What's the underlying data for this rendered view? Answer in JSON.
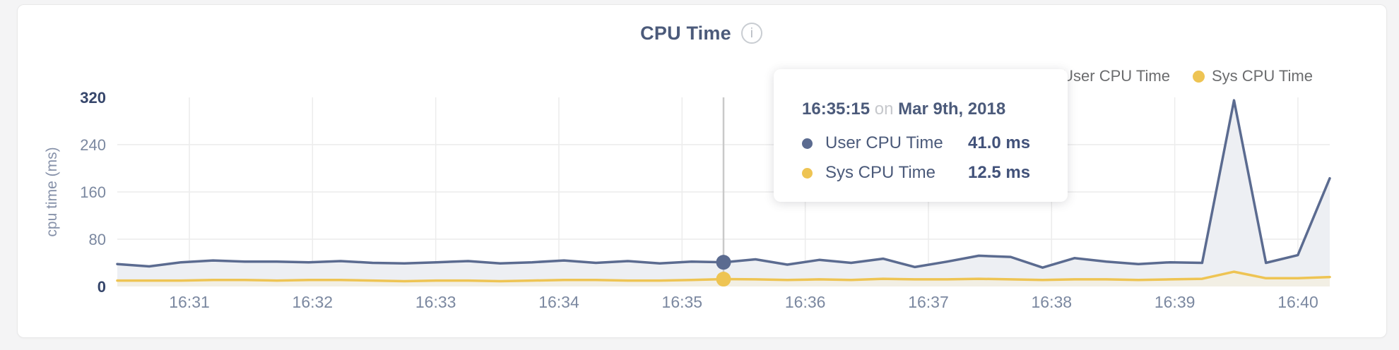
{
  "page": {
    "background": "#f4f4f5"
  },
  "header": {
    "title": "CPU Time",
    "info_icon_glyph": "i"
  },
  "legend": {
    "items": [
      {
        "label": "User CPU Time",
        "color": "#5b6b90"
      },
      {
        "label": "Sys CPU Time",
        "color": "#eec453"
      }
    ]
  },
  "tooltip": {
    "time": "16:35:15",
    "connector": "on",
    "date": "Mar 9th, 2018",
    "rows": [
      {
        "label": "User CPU Time",
        "value": "41.0 ms",
        "color": "#5b6b90"
      },
      {
        "label": "Sys CPU Time",
        "value": "12.5 ms",
        "color": "#eec453"
      }
    ]
  },
  "chart_data": {
    "type": "area",
    "title": "CPU Time",
    "xlabel": "",
    "ylabel": "cpu time (ms)",
    "ylim": [
      0,
      320
    ],
    "y_ticks": [
      0,
      80,
      160,
      240,
      320
    ],
    "x_ticks": [
      "16:31",
      "16:32",
      "16:33",
      "16:34",
      "16:35",
      "16:36",
      "16:37",
      "16:38",
      "16:39",
      "16:40"
    ],
    "grid": true,
    "legend_position": "top-right",
    "x": [
      "16:30:30",
      "16:30:45",
      "16:31:00",
      "16:31:15",
      "16:31:30",
      "16:31:45",
      "16:32:00",
      "16:32:15",
      "16:32:30",
      "16:32:45",
      "16:33:00",
      "16:33:15",
      "16:33:30",
      "16:33:45",
      "16:34:00",
      "16:34:15",
      "16:34:30",
      "16:34:45",
      "16:35:00",
      "16:35:15",
      "16:35:30",
      "16:35:45",
      "16:36:00",
      "16:36:15",
      "16:36:30",
      "16:36:45",
      "16:37:00",
      "16:37:15",
      "16:37:30",
      "16:37:45",
      "16:38:00",
      "16:38:15",
      "16:38:30",
      "16:38:45",
      "16:39:00",
      "16:39:15",
      "16:39:30",
      "16:39:45",
      "16:40:00"
    ],
    "series": [
      {
        "name": "User CPU Time",
        "color": "#5b6b90",
        "fill": "#edeff3",
        "values": [
          38,
          34,
          41,
          44,
          42,
          42,
          41,
          43,
          40,
          39,
          41,
          43,
          39,
          41,
          44,
          40,
          43,
          39,
          42,
          41,
          46,
          37,
          45,
          40,
          47,
          33,
          42,
          52,
          50,
          32,
          48,
          42,
          38,
          41,
          40,
          315,
          40,
          53,
          183
        ]
      },
      {
        "name": "Sys CPU Time",
        "color": "#eec453",
        "fill": "#f2efe4",
        "values": [
          10,
          10,
          10,
          11,
          11,
          10,
          11,
          11,
          10,
          9,
          10,
          10,
          9,
          10,
          11,
          11,
          10,
          10,
          11,
          12.5,
          12,
          11,
          12,
          11,
          13,
          12,
          12,
          13,
          12,
          11,
          12,
          12,
          11,
          12,
          13,
          25,
          14,
          14,
          16
        ]
      }
    ],
    "highlight": {
      "index": 19,
      "time": "16:35:15",
      "user_ms": 41.0,
      "sys_ms": 12.5
    },
    "colors": {
      "grid": "#ececec",
      "crosshair": "#c9c9c9",
      "tick_label": "#7b88a0",
      "tick_label_dark": "#36466b"
    }
  }
}
